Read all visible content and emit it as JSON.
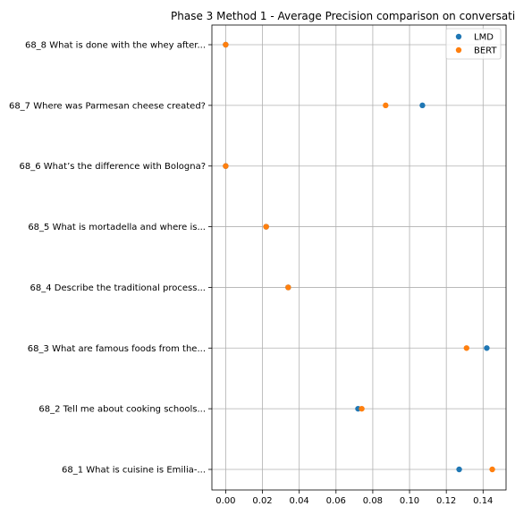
{
  "chart_data": {
    "type": "scatter",
    "title": "Phase 3 Method 1 - Average Precision comparison on conversatio",
    "xlabel": "",
    "ylabel": "",
    "xlim": [
      -0.0075,
      0.1525
    ],
    "x_ticks": [
      "0.00",
      "0.02",
      "0.04",
      "0.06",
      "0.08",
      "0.10",
      "0.12",
      "0.14"
    ],
    "x_tick_values": [
      0.0,
      0.02,
      0.04,
      0.06,
      0.08,
      0.1,
      0.12,
      0.14
    ],
    "categories": [
      "68_1 What is cuisine is Emilia-...",
      "68_2 Tell me about cooking schools...",
      "68_3 What are famous foods from the...",
      "68_4 Describe the traditional process...",
      "68_5 What is mortadella and where is...",
      "68_6 What’s the difference with Bologna?",
      "68_7 Where was Parmesan cheese created?",
      "68_8 What is done with the whey after..."
    ],
    "series": [
      {
        "name": "LMD",
        "color": "#1f77b4",
        "values": [
          0.127,
          0.072,
          0.142,
          0.034,
          0.022,
          0.0,
          0.107,
          0.0
        ]
      },
      {
        "name": "BERT",
        "color": "#ff7f0e",
        "values": [
          0.145,
          0.074,
          0.131,
          0.034,
          0.022,
          0.0,
          0.087,
          0.0
        ]
      }
    ],
    "grid": true,
    "legend_position": "top-right"
  }
}
